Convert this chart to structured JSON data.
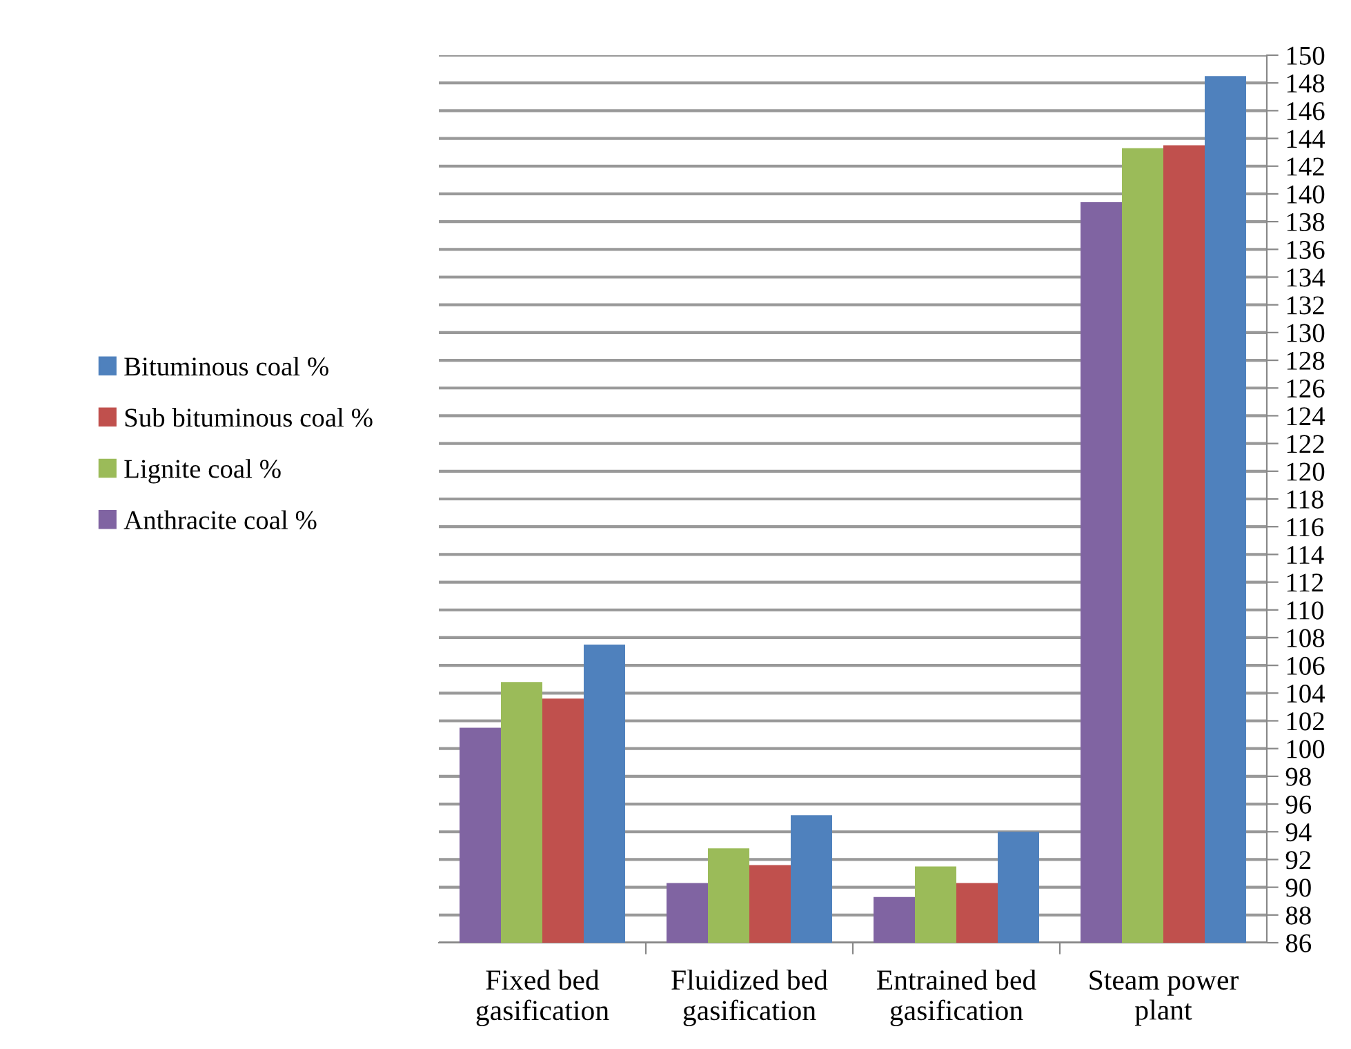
{
  "chart_data": {
    "type": "bar",
    "categories": [
      "Fixed bed\ngasification",
      "Fluidized bed\ngasification",
      "Entrained bed\ngasification",
      "Steam power\nplant"
    ],
    "series": [
      {
        "name": "Anthracite coal %",
        "color": "#8064a2",
        "values": [
          101.5,
          90.3,
          89.3,
          139.4
        ]
      },
      {
        "name": "Lignite coal %",
        "color": "#9bbb59",
        "values": [
          104.8,
          92.8,
          91.5,
          143.3
        ]
      },
      {
        "name": "Sub bituminous coal %",
        "color": "#c0504d",
        "values": [
          103.6,
          91.6,
          90.3,
          143.5
        ]
      },
      {
        "name": "Bituminous coal %",
        "color": "#4f81bd",
        "values": [
          107.5,
          95.2,
          94.0,
          148.5
        ]
      }
    ],
    "ylim": [
      86,
      150
    ],
    "yticks": [
      86,
      88,
      90,
      92,
      94,
      96,
      98,
      100,
      102,
      104,
      106,
      108,
      110,
      112,
      114,
      116,
      118,
      120,
      122,
      124,
      126,
      128,
      130,
      132,
      134,
      136,
      138,
      140,
      142,
      144,
      146,
      148,
      150
    ],
    "grid": "y",
    "legend": "left"
  }
}
